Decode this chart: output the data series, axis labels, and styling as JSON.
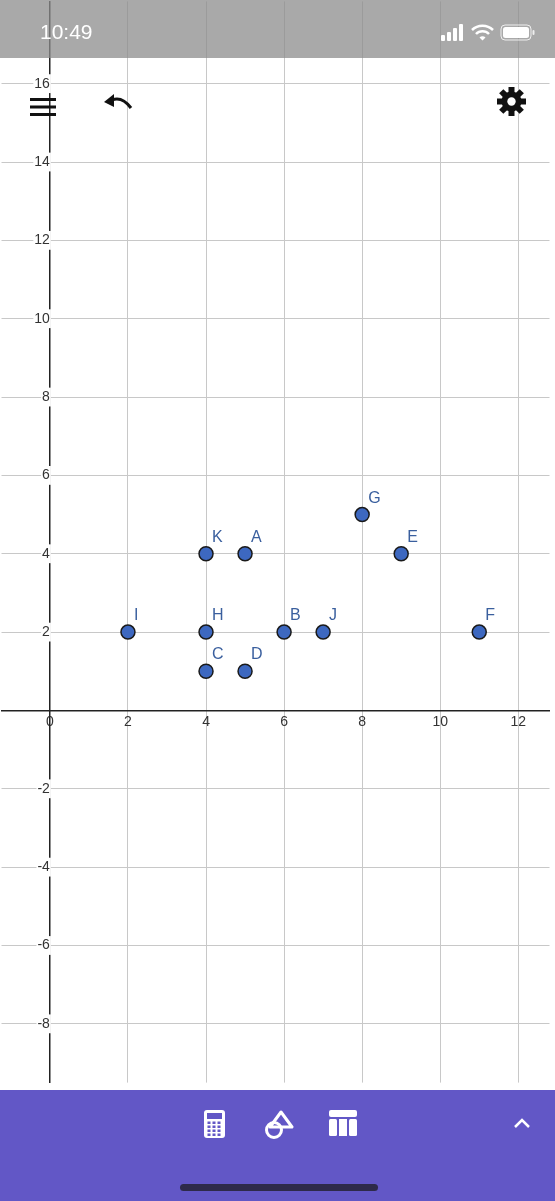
{
  "chart_data": {
    "type": "scatter",
    "x": [
      5,
      6,
      4,
      5,
      9,
      11,
      8,
      4,
      2,
      7,
      4
    ],
    "values": [
      4,
      2,
      1,
      1,
      4,
      2,
      5,
      2,
      2,
      2,
      4
    ],
    "color": "#3d68c0",
    "marker": "circle",
    "xlim": [
      -1.24,
      12.8
    ],
    "ylim": [
      -9.5,
      18.1
    ],
    "xticks": [
      0,
      2,
      4,
      6,
      8,
      10,
      12
    ],
    "yticks": [
      -8,
      -6,
      -4,
      -2,
      {
        "value": 0,
        "label": null
      },
      2,
      4,
      6,
      8,
      10,
      12,
      14,
      16
    ],
    "grid": true,
    "annotations": [
      "10:49",
      {
        "text": "A",
        "x": 5,
        "y": 4
      },
      {
        "text": "B",
        "x": 6,
        "y": 2
      },
      {
        "text": "C",
        "x": 4,
        "y": 1
      },
      {
        "text": "D",
        "x": 5,
        "y": 1
      },
      {
        "text": "E",
        "x": 9,
        "y": 4
      },
      {
        "text": "F",
        "x": 11,
        "y": 2
      },
      {
        "text": "G",
        "x": 8,
        "y": 5
      },
      {
        "text": "H",
        "x": 4,
        "y": 2
      },
      {
        "text": "I",
        "x": 2,
        "y": 2
      },
      {
        "text": "J",
        "x": 7,
        "y": 2
      },
      {
        "text": "K",
        "x": 4,
        "y": 4
      }
    ]
  }
}
